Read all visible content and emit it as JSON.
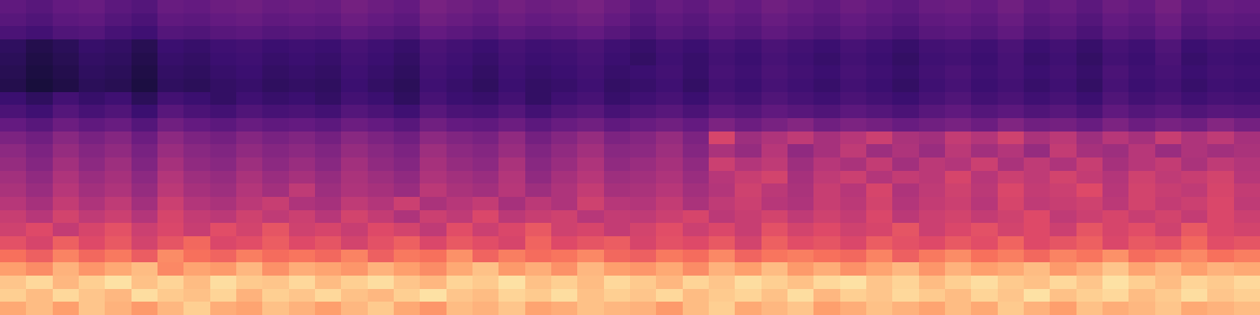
{
  "chart_data": {
    "type": "heatmap",
    "color": "magma",
    "tick_labels": false,
    "grid": false,
    "zlim": [
      0,
      100
    ],
    "cells": [
      [
        82,
        86,
        80,
        88,
        84,
        79,
        85,
        90,
        83,
        81,
        87,
        84,
        80,
        85,
        89,
        82,
        78,
        86,
        84,
        88,
        81,
        83,
        87,
        85,
        84,
        79,
        86,
        90,
        82,
        85,
        88,
        80,
        83,
        87,
        84,
        81,
        86,
        82,
        89,
        84,
        80,
        87,
        83,
        85,
        88,
        82,
        84,
        86
      ],
      [
        90,
        86,
        92,
        88,
        85,
        93,
        89,
        87,
        91,
        84,
        90,
        88,
        92,
        87,
        85,
        90,
        94,
        88,
        86,
        91,
        89,
        93,
        87,
        90,
        88,
        92,
        86,
        89,
        91,
        87,
        93,
        85,
        90,
        88,
        92,
        89,
        86,
        91,
        88,
        94,
        87,
        90,
        92,
        86,
        89,
        93,
        88,
        90
      ],
      [
        88,
        92,
        85,
        90,
        94,
        87,
        91,
        86,
        93,
        89,
        88,
        92,
        86,
        90,
        93,
        88,
        85,
        91,
        89,
        94,
        87,
        90,
        86,
        92,
        89,
        85,
        91,
        88,
        93,
        90,
        87,
        92,
        94,
        88,
        91,
        86,
        90,
        93,
        89,
        87,
        92,
        88,
        94,
        90,
        86,
        91,
        89,
        92
      ],
      [
        80,
        76,
        84,
        78,
        82,
        86,
        75,
        81,
        79,
        85,
        77,
        83,
        81,
        78,
        84,
        80,
        76,
        82,
        87,
        79,
        83,
        77,
        85,
        80,
        78,
        82,
        76,
        84,
        80,
        86,
        79,
        83,
        77,
        81,
        85,
        78,
        84,
        80,
        82,
        86,
        79,
        83,
        88,
        81,
        85,
        80,
        84,
        82
      ],
      [
        70,
        66,
        74,
        68,
        72,
        65,
        76,
        70,
        67,
        73,
        69,
        71,
        68,
        74,
        66,
        72,
        70,
        77,
        67,
        73,
        69,
        71,
        75,
        68,
        66,
        72,
        69,
        75,
        67,
        71,
        73,
        70,
        68,
        74,
        66,
        72,
        76,
        70,
        73,
        68,
        74,
        71,
        77,
        69,
        72,
        75,
        70,
        73
      ],
      [
        62,
        58,
        66,
        60,
        64,
        57,
        63,
        68,
        59,
        61,
        65,
        60,
        63,
        57,
        62,
        66,
        59,
        64,
        61,
        58,
        67,
        60,
        63,
        65,
        58,
        62,
        60,
        64,
        57,
        66,
        61,
        63,
        59,
        65,
        62,
        60,
        64,
        61,
        67,
        60,
        63,
        66,
        59,
        64,
        62,
        68,
        61,
        63
      ],
      [
        56,
        60,
        53,
        58,
        62,
        55,
        59,
        54,
        61,
        57,
        63,
        56,
        58,
        54,
        60,
        57,
        52,
        61,
        55,
        59,
        64,
        56,
        58,
        53,
        57,
        61,
        55,
        59,
        54,
        62,
        57,
        60,
        56,
        58,
        63,
        55,
        59,
        62,
        57,
        60,
        55,
        63,
        58,
        61,
        56,
        64,
        59,
        57
      ],
      [
        54,
        50,
        57,
        52,
        55,
        49,
        58,
        53,
        51,
        56,
        52,
        55,
        50,
        57,
        53,
        48,
        55,
        52,
        59,
        51,
        54,
        56,
        50,
        53,
        52,
        55,
        58,
        51,
        54,
        57,
        52,
        56,
        53,
        59,
        51,
        55,
        57,
        53,
        56,
        60,
        52,
        55,
        58,
        54,
        57,
        53,
        59,
        55
      ],
      [
        50,
        46,
        53,
        48,
        52,
        45,
        55,
        49,
        47,
        51,
        54,
        48,
        46,
        52,
        49,
        55,
        47,
        50,
        53,
        46,
        51,
        48,
        56,
        50,
        49,
        53,
        47,
        52,
        55,
        50,
        48,
        54,
        51,
        57,
        49,
        53,
        55,
        50,
        58,
        52,
        54,
        56,
        51,
        57,
        53,
        55,
        59,
        52
      ],
      [
        47,
        43,
        50,
        45,
        48,
        42,
        51,
        46,
        44,
        49,
        45,
        52,
        44,
        48,
        46,
        43,
        51,
        47,
        45,
        50,
        44,
        48,
        53,
        46,
        47,
        50,
        45,
        49,
        56,
        51,
        47,
        54,
        50,
        58,
        48,
        52,
        56,
        51,
        59,
        53,
        55,
        60,
        50,
        57,
        54,
        52,
        58,
        53
      ],
      [
        45,
        41,
        48,
        43,
        46,
        40,
        49,
        44,
        42,
        47,
        43,
        46,
        42,
        47,
        44,
        41,
        48,
        45,
        43,
        49,
        41,
        46,
        50,
        44,
        45,
        48,
        43,
        50,
        54,
        57,
        46,
        52,
        55,
        49,
        53,
        51,
        58,
        50,
        55,
        52,
        57,
        53,
        49,
        56,
        52,
        54,
        57,
        50
      ],
      [
        42,
        38,
        45,
        40,
        44,
        37,
        46,
        41,
        39,
        44,
        40,
        43,
        39,
        45,
        41,
        38,
        46,
        42,
        40,
        47,
        39,
        43,
        48,
        41,
        43,
        46,
        41,
        55,
        49,
        52,
        44,
        50,
        47,
        53,
        45,
        51,
        49,
        55,
        47,
        52,
        48,
        54,
        46,
        50,
        53,
        47,
        52,
        49
      ],
      [
        40,
        36,
        42,
        38,
        41,
        35,
        43,
        39,
        37,
        41,
        38,
        40,
        37,
        42,
        39,
        36,
        44,
        40,
        38,
        43,
        37,
        41,
        45,
        39,
        40,
        44,
        38,
        47,
        42,
        50,
        41,
        46,
        52,
        44,
        48,
        43,
        51,
        45,
        49,
        42,
        53,
        46,
        44,
        50,
        43,
        48,
        45,
        47
      ],
      [
        36,
        33,
        39,
        35,
        38,
        32,
        40,
        36,
        34,
        38,
        35,
        37,
        34,
        39,
        36,
        33,
        40,
        37,
        35,
        41,
        34,
        38,
        42,
        36,
        38,
        42,
        36,
        58,
        44,
        48,
        52,
        46,
        50,
        55,
        47,
        45,
        53,
        49,
        56,
        47,
        51,
        44,
        50,
        46,
        54,
        48,
        52,
        46
      ],
      [
        30,
        27,
        32,
        29,
        31,
        26,
        33,
        30,
        28,
        31,
        29,
        30,
        28,
        32,
        30,
        27,
        33,
        30,
        29,
        32,
        28,
        31,
        33,
        29,
        31,
        33,
        30,
        36,
        32,
        35,
        38,
        33,
        36,
        34,
        31,
        33,
        35,
        32,
        37,
        33,
        34,
        31,
        36,
        32,
        35,
        33,
        38,
        34
      ],
      [
        24,
        21,
        26,
        23,
        25,
        20,
        27,
        24,
        22,
        25,
        23,
        24,
        22,
        26,
        24,
        21,
        27,
        24,
        23,
        26,
        22,
        25,
        27,
        23,
        25,
        27,
        24,
        28,
        26,
        29,
        27,
        25,
        28,
        26,
        24,
        27,
        29,
        26,
        28,
        25,
        27,
        24,
        29,
        26,
        28,
        25,
        27,
        26
      ],
      [
        20,
        17,
        22,
        19,
        21,
        16,
        22,
        20,
        18,
        21,
        19,
        20,
        18,
        22,
        20,
        17,
        23,
        20,
        19,
        22,
        18,
        21,
        23,
        19,
        21,
        23,
        20,
        24,
        22,
        25,
        23,
        21,
        24,
        22,
        20,
        23,
        25,
        22,
        24,
        21,
        23,
        20,
        25,
        22,
        24,
        21,
        23,
        22
      ],
      [
        14,
        11,
        13,
        16,
        15,
        12,
        17,
        16,
        18,
        19,
        17,
        18,
        17,
        20,
        18,
        16,
        21,
        19,
        17,
        20,
        18,
        19,
        21,
        18,
        19,
        21,
        18,
        22,
        20,
        23,
        21,
        19,
        22,
        20,
        18,
        21,
        23,
        20,
        22,
        19,
        21,
        18,
        23,
        20,
        22,
        19,
        21,
        20
      ],
      [
        15,
        12,
        14,
        17,
        16,
        13,
        18,
        17,
        19,
        20,
        18,
        19,
        18,
        21,
        19,
        17,
        22,
        20,
        18,
        21,
        19,
        20,
        22,
        19,
        20,
        22,
        19,
        23,
        21,
        24,
        22,
        20,
        23,
        21,
        19,
        22,
        24,
        21,
        23,
        20,
        22,
        19,
        24,
        21,
        23,
        20,
        22,
        21
      ],
      [
        16,
        13,
        15,
        18,
        17,
        14,
        19,
        18,
        20,
        21,
        19,
        20,
        19,
        22,
        20,
        18,
        23,
        21,
        19,
        22,
        20,
        21,
        23,
        20,
        18,
        21,
        19,
        22,
        20,
        23,
        21,
        19,
        22,
        20,
        18,
        21,
        22,
        20,
        23,
        19,
        21,
        18,
        22,
        20,
        24,
        19,
        21,
        20
      ],
      [
        17,
        14,
        16,
        19,
        18,
        15,
        20,
        19,
        21,
        22,
        20,
        21,
        20,
        23,
        21,
        19,
        24,
        22,
        20,
        23,
        21,
        22,
        24,
        21,
        19,
        22,
        20,
        23,
        21,
        24,
        22,
        20,
        23,
        21,
        19,
        22,
        23,
        21,
        24,
        20,
        22,
        19,
        23,
        21,
        25,
        20,
        22,
        21
      ],
      [
        24,
        22,
        25,
        26,
        23,
        21,
        26,
        25,
        27,
        28,
        26,
        27,
        26,
        29,
        27,
        25,
        30,
        28,
        26,
        29,
        27,
        28,
        30,
        27,
        24,
        27,
        25,
        28,
        26,
        29,
        27,
        25,
        28,
        26,
        24,
        27,
        28,
        26,
        29,
        25,
        27,
        24,
        28,
        26,
        30,
        25,
        27,
        26
      ],
      [
        27,
        25,
        28,
        29,
        26,
        24,
        29,
        28,
        30,
        31,
        29,
        30,
        29,
        32,
        30,
        28,
        33,
        31,
        29,
        32,
        30,
        31,
        33,
        30,
        26,
        29,
        27,
        30,
        28,
        31,
        29,
        27,
        30,
        28,
        26,
        29,
        30,
        28,
        31,
        27,
        29,
        26,
        30,
        28,
        32,
        27,
        29,
        28
      ],
      [
        29,
        27,
        30,
        31,
        28,
        26,
        31,
        30,
        32,
        33,
        31,
        32,
        31,
        34,
        32,
        30,
        35,
        33,
        31,
        34,
        32,
        33,
        35,
        32,
        28,
        31,
        29,
        32,
        30,
        33,
        31,
        29,
        32,
        30,
        28,
        31,
        32,
        30,
        33,
        29,
        31,
        28,
        32,
        30,
        34,
        29,
        31,
        30
      ]
    ]
  }
}
